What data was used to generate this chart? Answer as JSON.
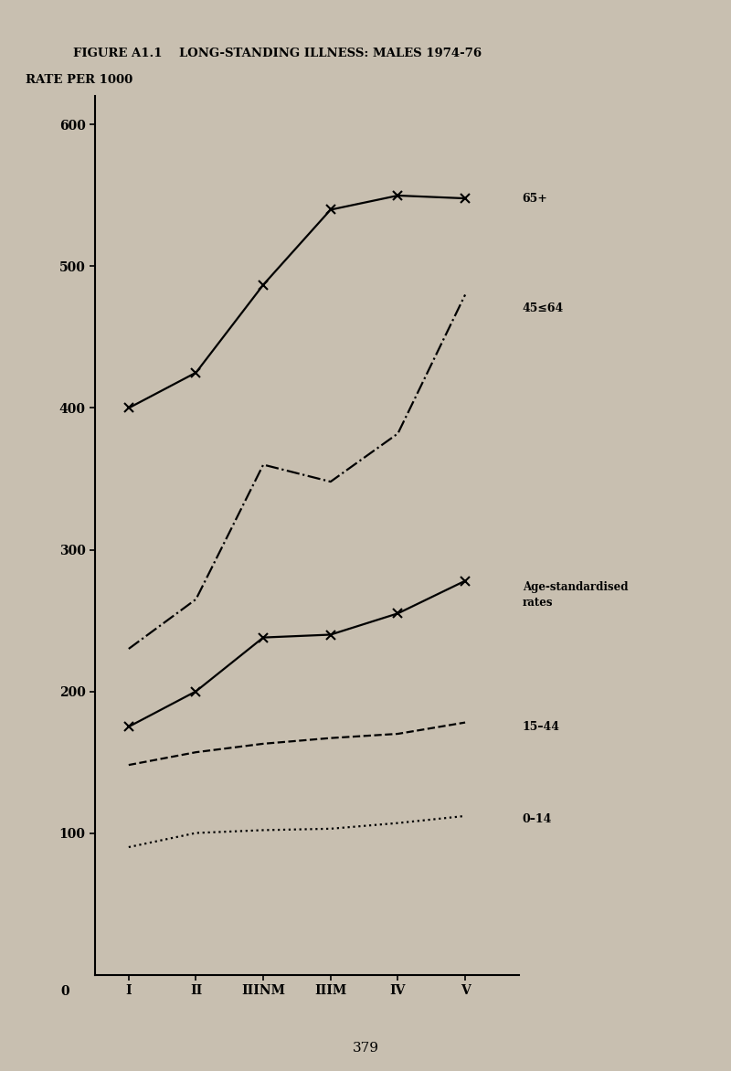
{
  "title": "FIGURE A1.1    LONG-STANDING ILLNESS: MALES 1974-76",
  "ylabel_text": "RATE PER 1000",
  "xtick_labels": [
    "I",
    "II",
    "IIINM",
    "IIIM",
    "IV",
    "V"
  ],
  "x_positions": [
    1,
    2,
    3,
    4,
    5,
    6
  ],
  "ylim": [
    0,
    620
  ],
  "yticks": [
    100,
    200,
    300,
    400,
    500,
    600
  ],
  "series_65plus": [
    400,
    425,
    487,
    540,
    550,
    548
  ],
  "series_45_64": [
    230,
    265,
    360,
    348,
    382,
    480
  ],
  "series_age_std": [
    175,
    200,
    238,
    240,
    255,
    278
  ],
  "series_15_44": [
    148,
    157,
    163,
    167,
    170,
    178
  ],
  "series_0_14": [
    90,
    100,
    102,
    103,
    107,
    112
  ],
  "page_number": "379",
  "bg_color": "#c8bfb0",
  "line_color": "#000000"
}
